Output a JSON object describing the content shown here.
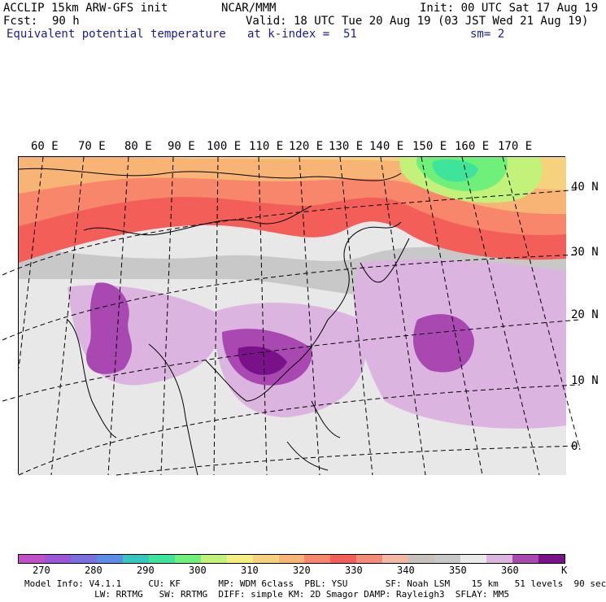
{
  "header": {
    "model": "ACCLIP 15km ARW-GFS init",
    "center": "NCAR/MMM",
    "init": "Init: 00 UTC Sat 17 Aug 19",
    "fcst_label": "Fcst:",
    "fcst_value": "90 h",
    "valid": "Valid: 18 UTC Tue 20 Aug 19 (03 JST Wed 21 Aug 19)",
    "field": "Equivalent potential temperature",
    "level": "at k-index =  51",
    "smooth": "sm= 2"
  },
  "lon_labels": [
    "60 E",
    "70 E",
    "80 E",
    "90 E",
    "100 E",
    "110 E",
    "120 E",
    "130 E",
    "140 E",
    "150 E",
    "160 E",
    "170 E"
  ],
  "lat_labels": [
    "40 N",
    "30 N",
    "20 N",
    "10 N",
    "0"
  ],
  "colorbar": {
    "colors": [
      "#c04fc8",
      "#9a55d8",
      "#7a6fe0",
      "#5a8ee6",
      "#36c6c0",
      "#3ee49a",
      "#6ef07a",
      "#c2f27a",
      "#f4ef7e",
      "#f6d27e",
      "#f7b474",
      "#f7866a",
      "#f45e58",
      "#f28c78",
      "#f2b8a4",
      "#c8c0ba",
      "#c8c8c8",
      "#eaeaea",
      "#dcb4e0",
      "#a848b0",
      "#7a108a"
    ],
    "ticks": [
      "270",
      "280",
      "290",
      "300",
      "310",
      "320",
      "330",
      "340",
      "350",
      "360"
    ],
    "unit": "K"
  },
  "info": {
    "line1": "Model Info: V4.1.1     CU: KF       MP: WDM 6class  PBL: YSU       SF: Noah LSM    15 km   51 levels  90 sec",
    "line2": "             LW: RRTMG   SW: RRTMG  DIFF: simple KM: 2D Smagor DAMP: Rayleigh3  SFLAY: MM5"
  }
}
